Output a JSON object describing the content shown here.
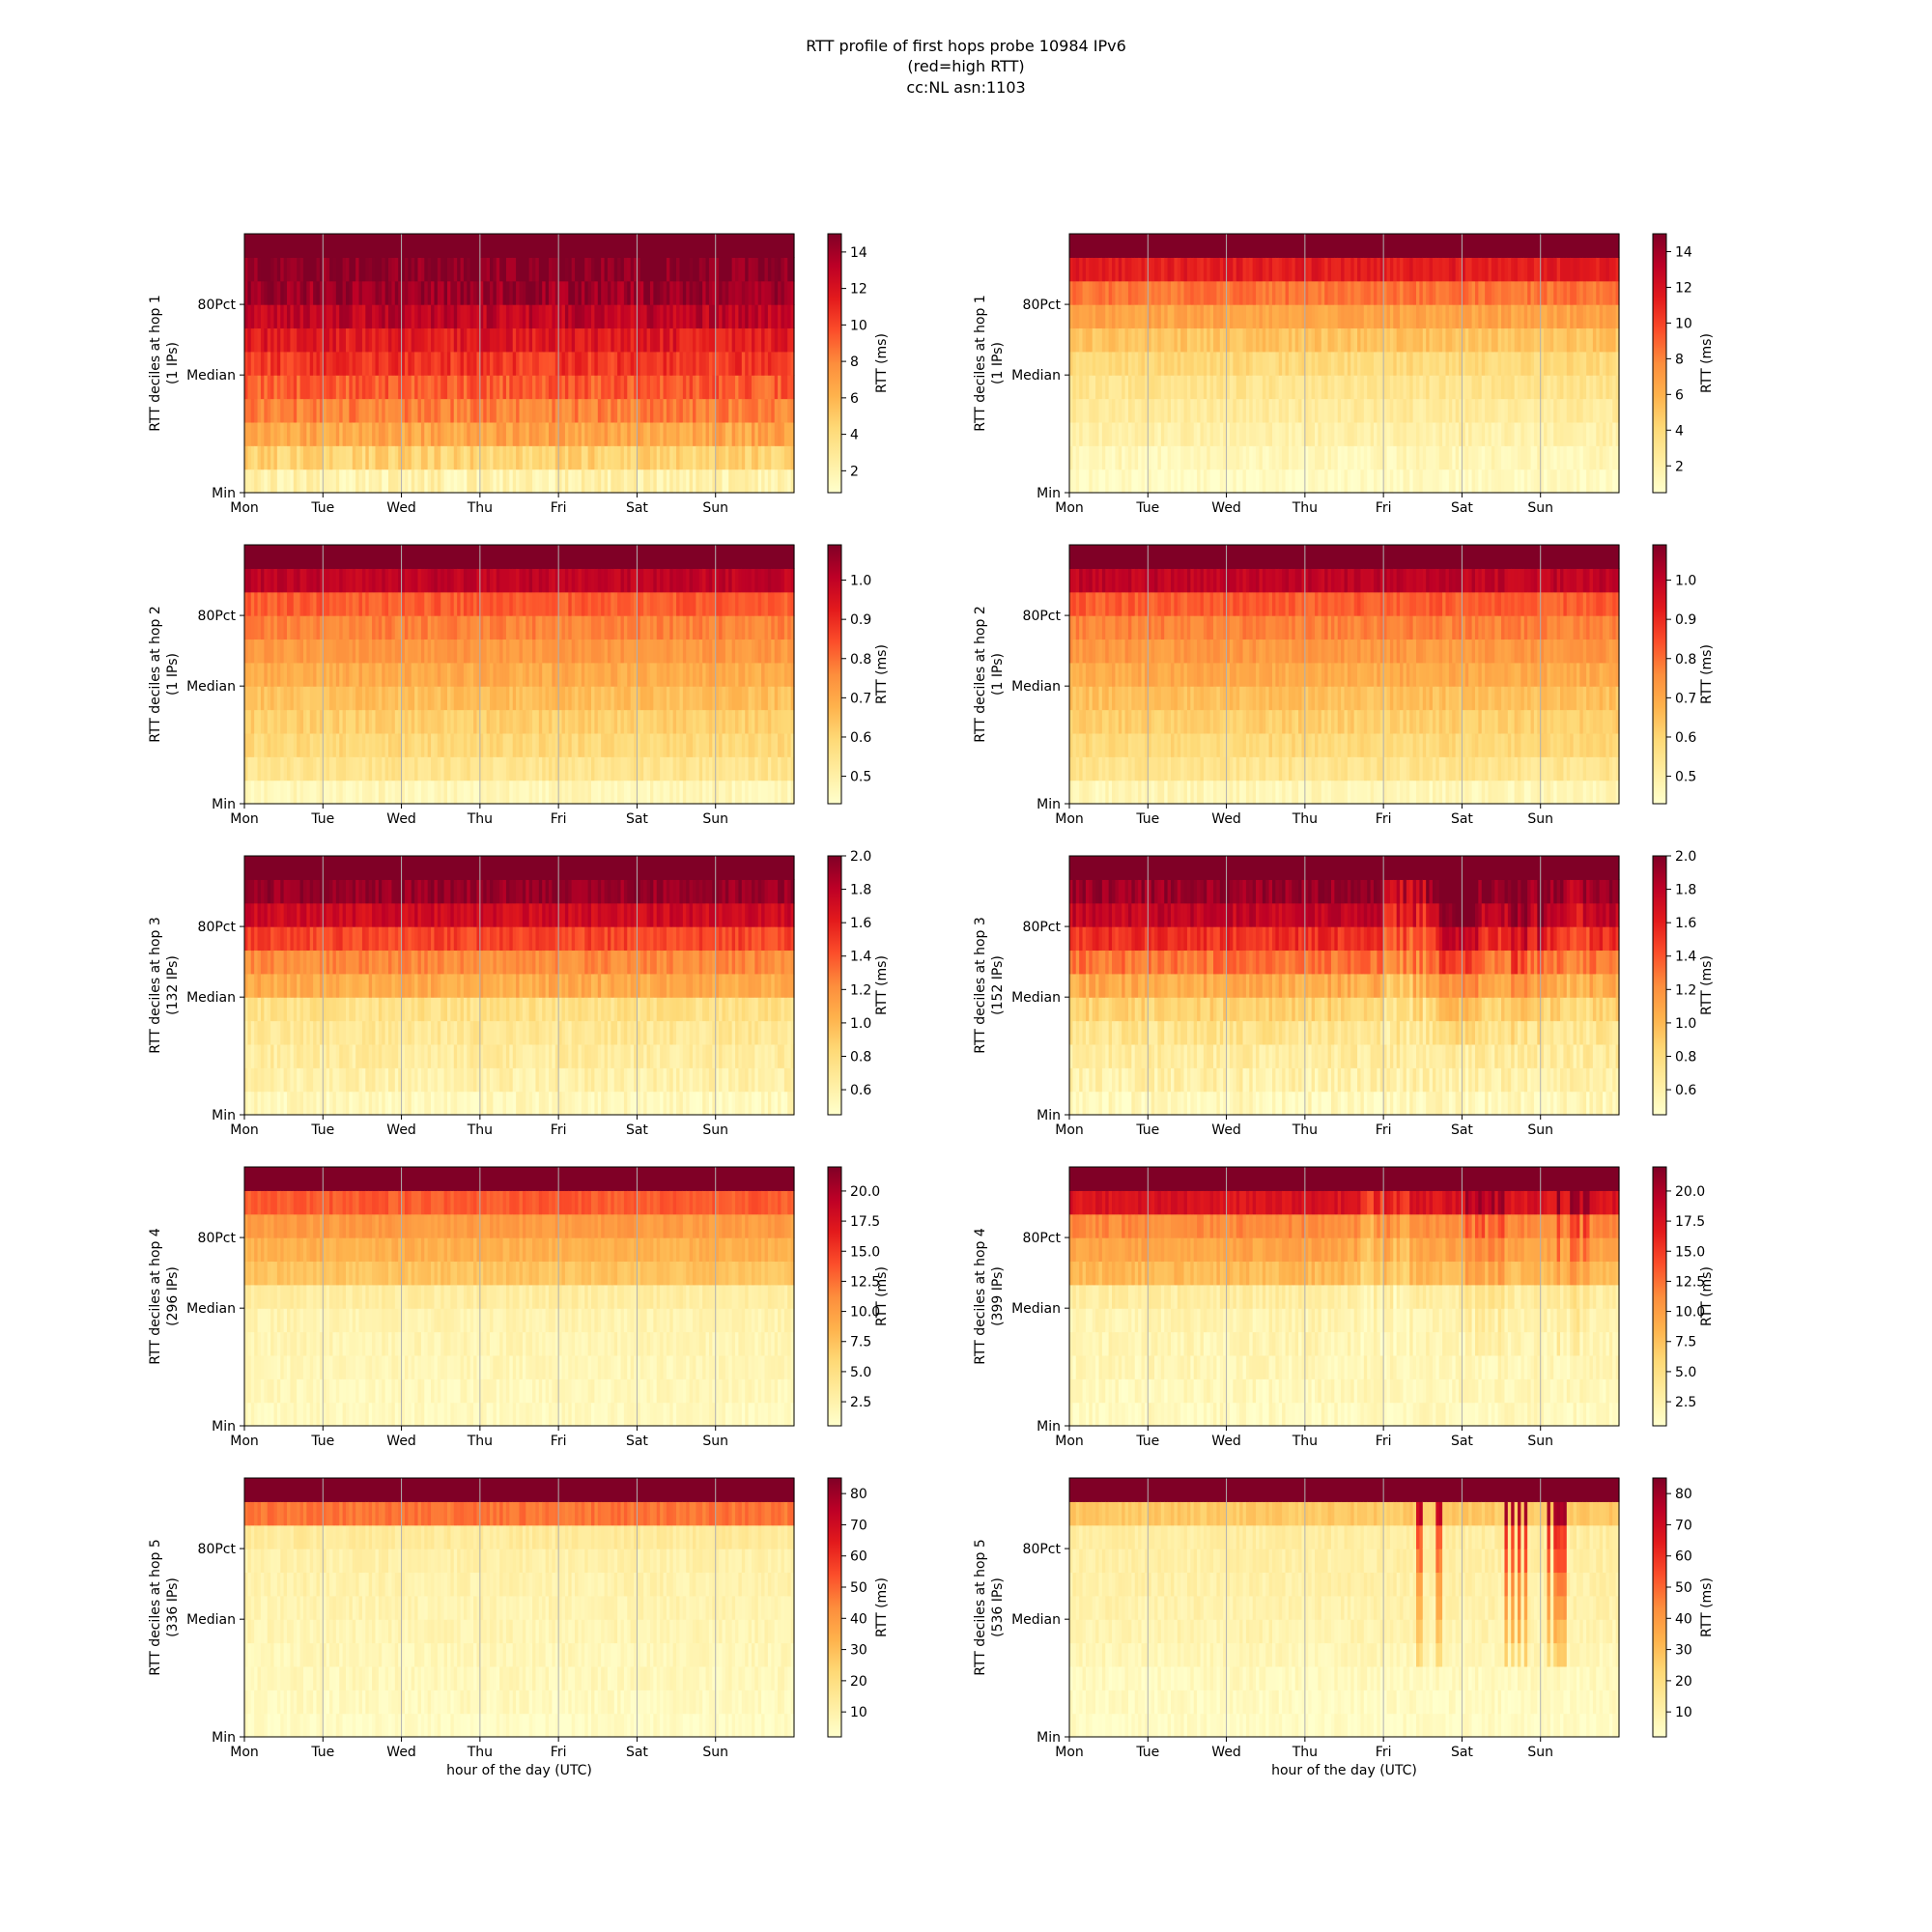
{
  "figure": {
    "title_lines": [
      "RTT profile of first hops probe 10984 IPv6",
      "(red=high RTT)",
      "cc:NL asn:1103"
    ]
  },
  "colors": {
    "colormap": "YlOrRd",
    "low": "#ffffcc",
    "high": "#800026",
    "gridline": "#b0b0b0",
    "axes": "#000000"
  },
  "chart_data": [
    {
      "type": "heatmap",
      "row": 1,
      "col": 1,
      "ylabel": "RTT deciles at hop 1",
      "ylabel2": "(1 IPs)",
      "x_ticks": [
        "Mon",
        "Tue",
        "Wed",
        "Thu",
        "Fri",
        "Sat",
        "Sun"
      ],
      "y_ticks": [
        "Min",
        "Median",
        "80Pct"
      ],
      "colorbar_label": "RTT (ms)",
      "colorbar_ticks": [
        2,
        4,
        6,
        8,
        10,
        12,
        14
      ],
      "color_range": [
        0.8,
        15
      ],
      "decile_levels": [
        0.09,
        0.26,
        0.42,
        0.52,
        0.6,
        0.68,
        0.76,
        0.86,
        0.94,
        0.98,
        1.0
      ],
      "noise": 0.08,
      "events": []
    },
    {
      "type": "heatmap",
      "row": 1,
      "col": 2,
      "ylabel": "RTT deciles at hop 1",
      "ylabel2": "(1 IPs)",
      "x_ticks": [
        "Mon",
        "Tue",
        "Wed",
        "Thu",
        "Fri",
        "Sat",
        "Sun"
      ],
      "y_ticks": [
        "Min",
        "Median",
        "80Pct"
      ],
      "colorbar_label": "RTT (ms)",
      "colorbar_ticks": [
        2,
        4,
        6,
        8,
        10,
        12,
        14
      ],
      "color_range": [
        0.5,
        15
      ],
      "decile_levels": [
        0.03,
        0.06,
        0.1,
        0.14,
        0.18,
        0.24,
        0.32,
        0.42,
        0.55,
        0.75,
        1.0
      ],
      "noise": 0.05,
      "events": []
    },
    {
      "type": "heatmap",
      "row": 2,
      "col": 1,
      "ylabel": "RTT deciles at hop 2",
      "ylabel2": "(1 IPs)",
      "x_ticks": [
        "Mon",
        "Tue",
        "Wed",
        "Thu",
        "Fri",
        "Sat",
        "Sun"
      ],
      "y_ticks": [
        "Min",
        "Median",
        "80Pct"
      ],
      "colorbar_label": "RTT (ms)",
      "colorbar_ticks": [
        0.5,
        0.6,
        0.7,
        0.8,
        0.9,
        1.0
      ],
      "color_range": [
        0.43,
        1.09
      ],
      "decile_levels": [
        0.06,
        0.18,
        0.24,
        0.28,
        0.33,
        0.4,
        0.46,
        0.52,
        0.6,
        0.86,
        1.0
      ],
      "noise": 0.05,
      "events": []
    },
    {
      "type": "heatmap",
      "row": 2,
      "col": 2,
      "ylabel": "RTT deciles at hop 2",
      "ylabel2": "(1 IPs)",
      "x_ticks": [
        "Mon",
        "Tue",
        "Wed",
        "Thu",
        "Fri",
        "Sat",
        "Sun"
      ],
      "y_ticks": [
        "Min",
        "Median",
        "80Pct"
      ],
      "colorbar_label": "RTT (ms)",
      "colorbar_ticks": [
        0.5,
        0.6,
        0.7,
        0.8,
        0.9,
        1.0
      ],
      "color_range": [
        0.43,
        1.09
      ],
      "decile_levels": [
        0.06,
        0.18,
        0.24,
        0.28,
        0.33,
        0.4,
        0.46,
        0.52,
        0.6,
        0.86,
        1.0
      ],
      "noise": 0.05,
      "events": []
    },
    {
      "type": "heatmap",
      "row": 3,
      "col": 1,
      "ylabel": "RTT deciles at hop 3",
      "ylabel2": "(132 IPs)",
      "x_ticks": [
        "Mon",
        "Tue",
        "Wed",
        "Thu",
        "Fri",
        "Sat",
        "Sun"
      ],
      "y_ticks": [
        "Min",
        "Median",
        "80Pct"
      ],
      "colorbar_label": "RTT (ms)",
      "colorbar_ticks": [
        0.6,
        0.8,
        1.0,
        1.2,
        1.4,
        1.6,
        1.8,
        2.0
      ],
      "color_range": [
        0.45,
        2.0
      ],
      "decile_levels": [
        0.05,
        0.1,
        0.13,
        0.16,
        0.2,
        0.4,
        0.5,
        0.65,
        0.82,
        0.95,
        1.0
      ],
      "noise": 0.06,
      "events": []
    },
    {
      "type": "heatmap",
      "row": 3,
      "col": 2,
      "ylabel": "RTT deciles at hop 3",
      "ylabel2": "(152 IPs)",
      "x_ticks": [
        "Mon",
        "Tue",
        "Wed",
        "Thu",
        "Fri",
        "Sat",
        "Sun"
      ],
      "y_ticks": [
        "Min",
        "Median",
        "80Pct"
      ],
      "colorbar_label": "RTT (ms)",
      "colorbar_ticks": [
        0.6,
        0.8,
        1.0,
        1.2,
        1.4,
        1.6,
        1.8,
        2.0
      ],
      "color_range": [
        0.45,
        2.0
      ],
      "decile_levels": [
        0.05,
        0.1,
        0.13,
        0.18,
        0.26,
        0.4,
        0.55,
        0.7,
        0.85,
        0.95,
        1.0
      ],
      "noise": 0.07,
      "events": [
        [
          4.0,
          4.5,
          -0.2
        ],
        [
          4.7,
          5.2,
          0.2
        ],
        [
          5.6,
          6.0,
          0.2
        ],
        [
          6.3,
          6.6,
          -0.1
        ]
      ]
    },
    {
      "type": "heatmap",
      "row": 4,
      "col": 1,
      "ylabel": "RTT deciles at hop 4",
      "ylabel2": "(296 IPs)",
      "x_ticks": [
        "Mon",
        "Tue",
        "Wed",
        "Thu",
        "Fri",
        "Sat",
        "Sun"
      ],
      "y_ticks": [
        "Min",
        "Median",
        "80Pct"
      ],
      "colorbar_label": "RTT (ms)",
      "colorbar_ticks": [
        2.5,
        5.0,
        7.5,
        10.0,
        12.5,
        15.0,
        17.5,
        20.0
      ],
      "color_range": [
        0.5,
        22
      ],
      "decile_levels": [
        0.04,
        0.05,
        0.06,
        0.07,
        0.08,
        0.12,
        0.32,
        0.38,
        0.45,
        0.6,
        1.0
      ],
      "noise": 0.04,
      "events": []
    },
    {
      "type": "heatmap",
      "row": 4,
      "col": 2,
      "ylabel": "RTT deciles at hop 4",
      "ylabel2": "(399 IPs)",
      "x_ticks": [
        "Mon",
        "Tue",
        "Wed",
        "Thu",
        "Fri",
        "Sat",
        "Sun"
      ],
      "y_ticks": [
        "Min",
        "Median",
        "80Pct"
      ],
      "colorbar_label": "RTT (ms)",
      "colorbar_ticks": [
        2.5,
        5.0,
        7.5,
        10.0,
        12.5,
        15.0,
        17.5,
        20.0
      ],
      "color_range": [
        0.5,
        22
      ],
      "decile_levels": [
        0.04,
        0.05,
        0.06,
        0.07,
        0.08,
        0.12,
        0.35,
        0.42,
        0.5,
        0.78,
        1.0
      ],
      "noise": 0.05,
      "events": [
        [
          3.7,
          4.3,
          -0.15
        ],
        [
          5.0,
          5.6,
          0.15
        ],
        [
          6.2,
          6.6,
          0.2
        ]
      ]
    },
    {
      "type": "heatmap",
      "row": 5,
      "col": 1,
      "ylabel": "RTT deciles at hop 5",
      "ylabel2": "(336 IPs)",
      "x_ticks": [
        "Mon",
        "Tue",
        "Wed",
        "Thu",
        "Fri",
        "Sat",
        "Sun"
      ],
      "y_ticks": [
        "Min",
        "Median",
        "80Pct"
      ],
      "colorbar_label": "RTT (ms)",
      "colorbar_ticks": [
        10,
        20,
        30,
        40,
        50,
        60,
        70,
        80
      ],
      "color_range": [
        2,
        85
      ],
      "decile_levels": [
        0.02,
        0.04,
        0.05,
        0.06,
        0.07,
        0.08,
        0.09,
        0.1,
        0.14,
        0.55,
        1.0
      ],
      "noise": 0.04,
      "events": []
    },
    {
      "type": "heatmap",
      "row": 5,
      "col": 2,
      "ylabel": "RTT deciles at hop 5",
      "ylabel2": "(536 IPs)",
      "x_ticks": [
        "Mon",
        "Tue",
        "Wed",
        "Thu",
        "Fri",
        "Sat",
        "Sun"
      ],
      "y_ticks": [
        "Min",
        "Median",
        "80Pct"
      ],
      "colorbar_label": "RTT (ms)",
      "colorbar_ticks": [
        10,
        20,
        30,
        40,
        50,
        60,
        70,
        80
      ],
      "color_range": [
        2,
        85
      ],
      "decile_levels": [
        0.02,
        0.03,
        0.04,
        0.06,
        0.08,
        0.09,
        0.1,
        0.11,
        0.12,
        0.3,
        1.0
      ],
      "noise": 0.04,
      "events": [
        [
          4.4,
          4.8,
          0.6
        ],
        [
          5.5,
          5.8,
          0.7
        ],
        [
          6.0,
          6.3,
          0.7
        ]
      ]
    }
  ],
  "xlabel": "hour of the day (UTC)"
}
